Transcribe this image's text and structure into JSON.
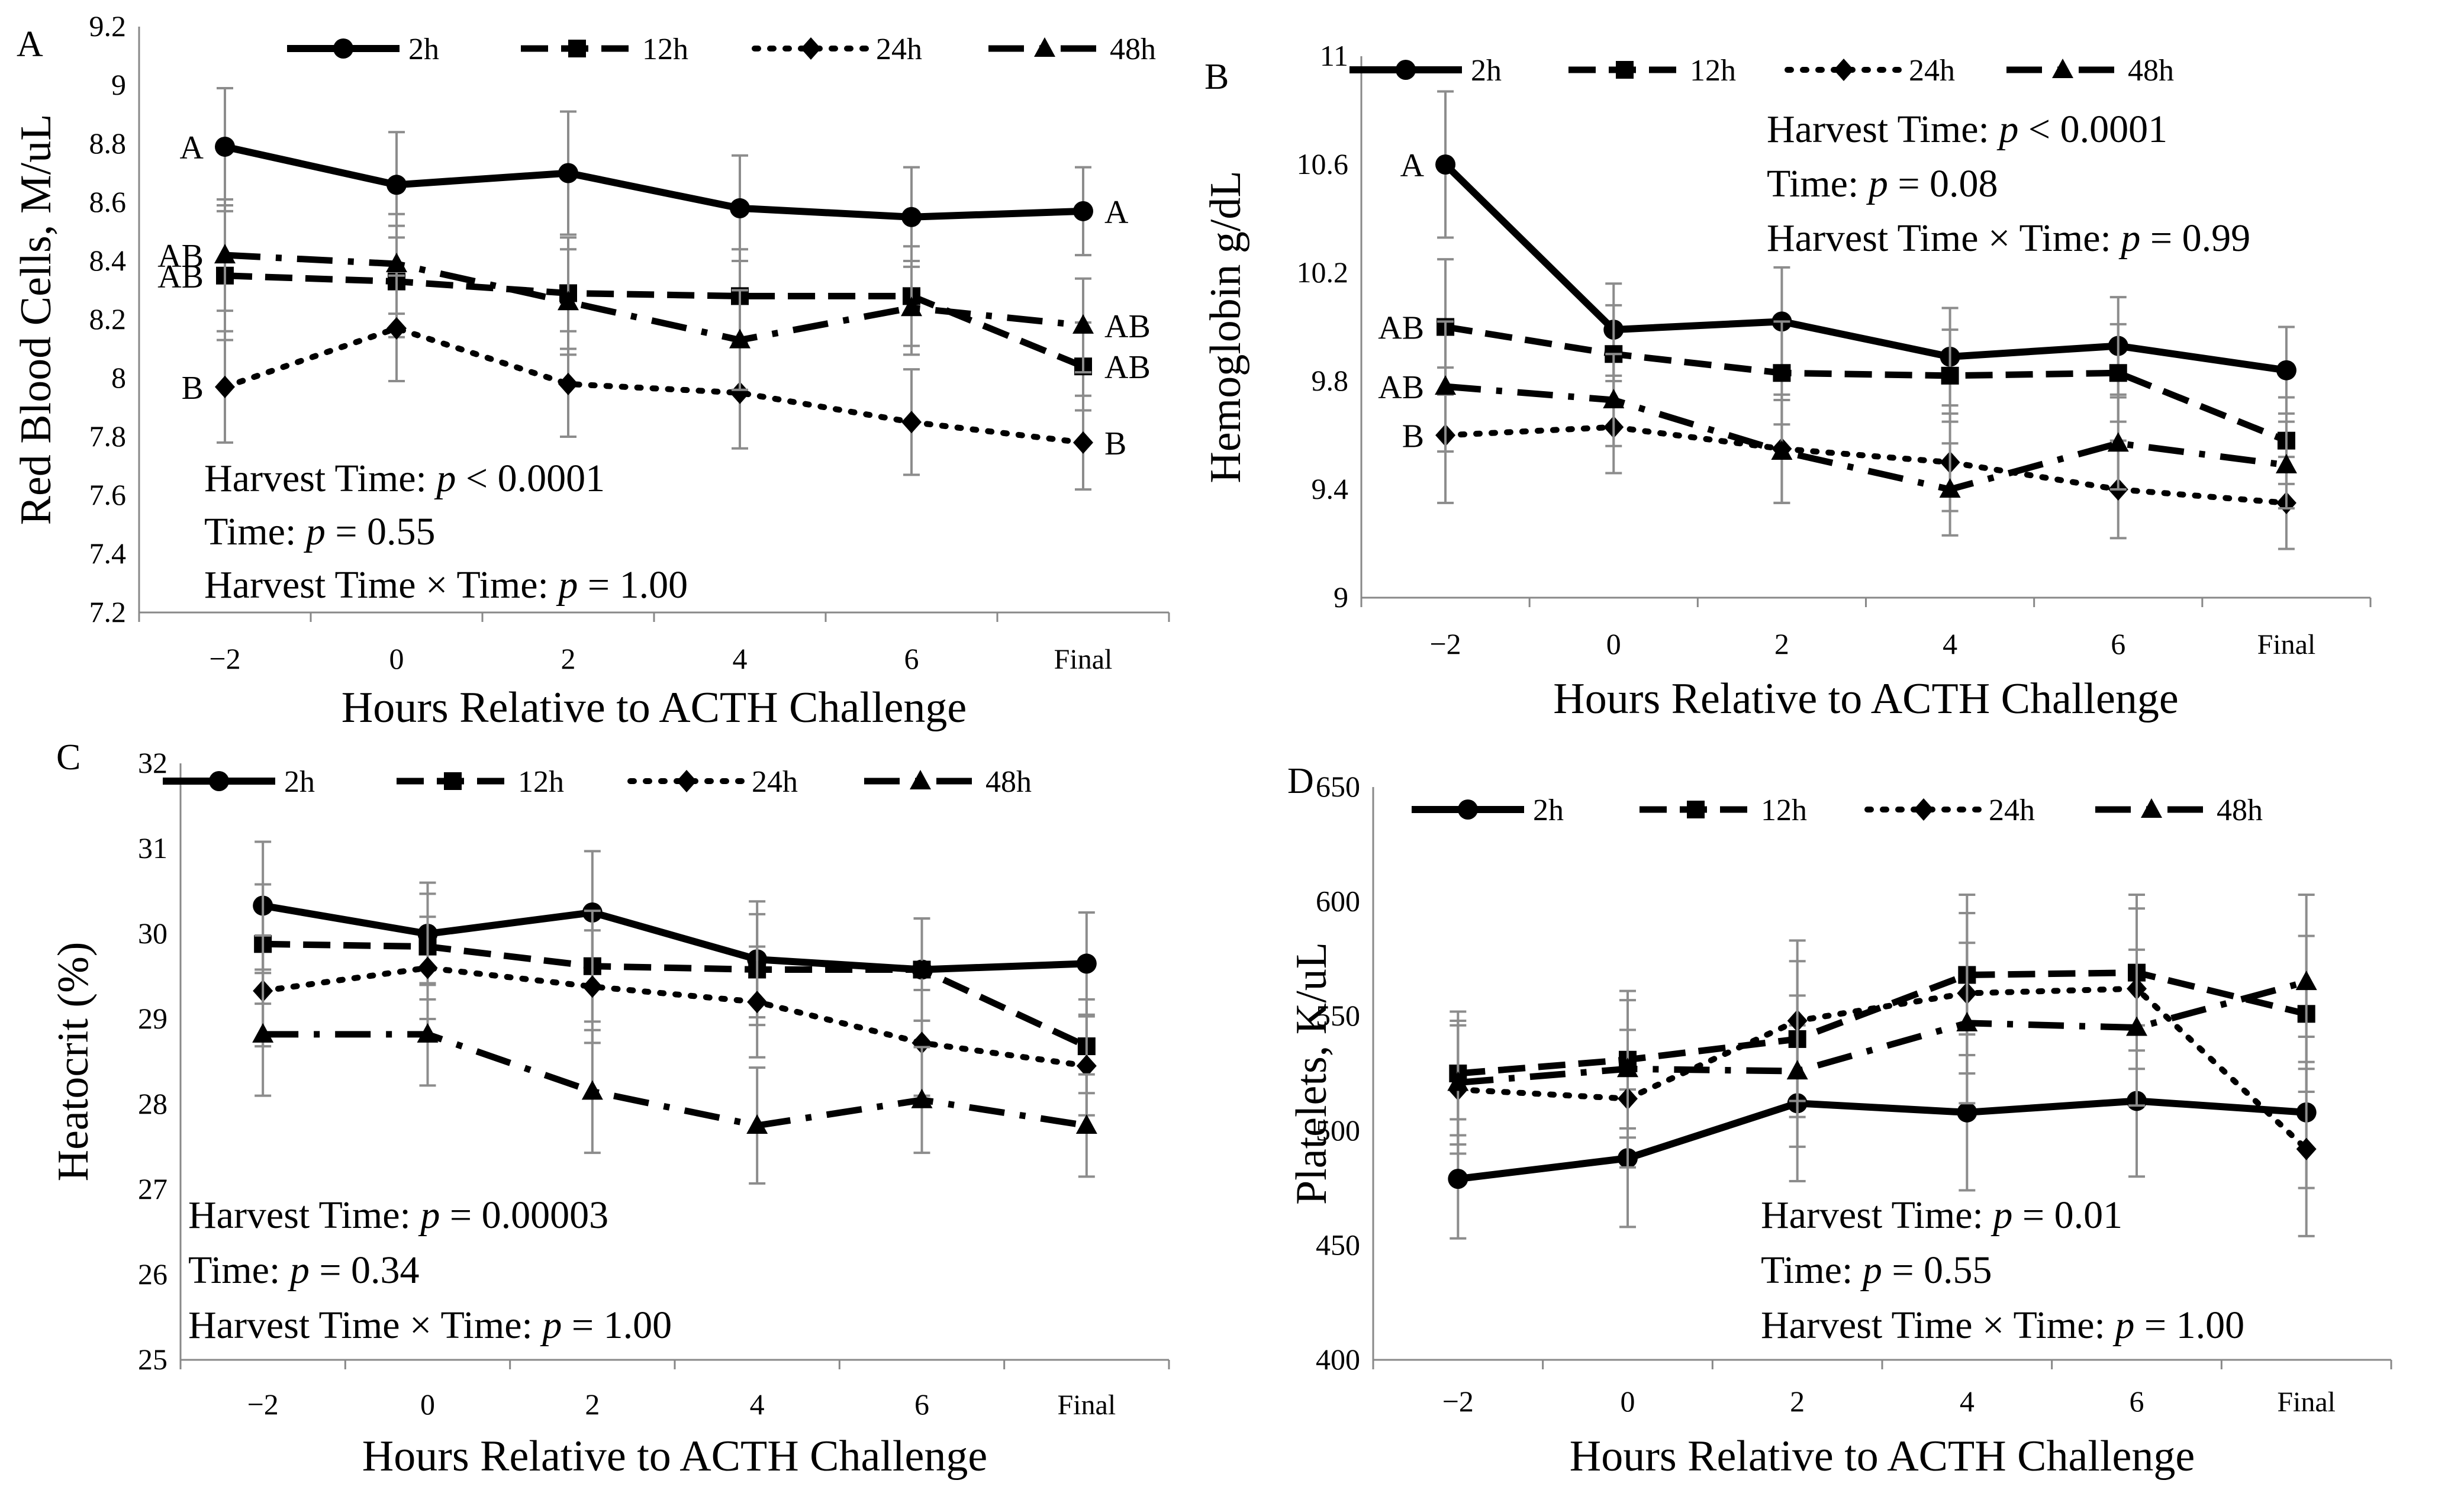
{
  "chart_data": [
    {
      "type": "line",
      "panel": "A",
      "xlabel": "Hours Relative to ACTH Challenge",
      "ylabel": "Red Blood Cells, M/uL",
      "categories": [
        "−2",
        "0",
        "2",
        "4",
        "6",
        "Final"
      ],
      "ylim": [
        7.2,
        9.2
      ],
      "yticks": [
        "7.2",
        "7.4",
        "7.6",
        "7.8",
        "8",
        "8.2",
        "8.4",
        "8.6",
        "8.8",
        "9",
        "9.2"
      ],
      "legend_position": "top",
      "series": [
        {
          "name": "2h",
          "values": [
            8.79,
            8.66,
            8.7,
            8.58,
            8.55,
            8.57
          ],
          "err": [
            0.2,
            0.18,
            0.21,
            0.18,
            0.17,
            0.15
          ]
        },
        {
          "name": "12h",
          "values": [
            8.35,
            8.33,
            8.29,
            8.28,
            8.28,
            8.04
          ],
          "err": [
            0.22,
            0.19,
            0.19,
            0.16,
            0.17,
            0.15
          ]
        },
        {
          "name": "24h",
          "values": [
            7.97,
            8.17,
            7.98,
            7.95,
            7.85,
            7.78
          ],
          "err": [
            0.19,
            0.18,
            0.18,
            0.19,
            0.18,
            0.16
          ]
        },
        {
          "name": "48h",
          "values": [
            8.42,
            8.39,
            8.26,
            8.13,
            8.24,
            8.18
          ],
          "err": [
            0.19,
            0.17,
            0.18,
            0.17,
            0.16,
            0.16
          ]
        }
      ],
      "annotations": [
        {
          "text": "A",
          "series": "2h",
          "index": 0,
          "side": "left"
        },
        {
          "text": "A",
          "series": "2h",
          "index": 5,
          "side": "right"
        },
        {
          "text": "AB",
          "series": "48h",
          "index": 0,
          "side": "left"
        },
        {
          "text": "AB",
          "series": "12h",
          "index": 0,
          "side": "left"
        },
        {
          "text": "B",
          "series": "24h",
          "index": 0,
          "side": "left"
        },
        {
          "text": "AB",
          "series": "48h",
          "index": 5,
          "side": "right"
        },
        {
          "text": "AB",
          "series": "12h",
          "index": 5,
          "side": "right"
        },
        {
          "text": "B",
          "series": "24h",
          "index": 5,
          "side": "right"
        }
      ],
      "stats": [
        "Harvest Time: |p| < 0.0001",
        "Time: |p| = 0.55",
        "Harvest Time × Time: |p| = 1.00"
      ]
    },
    {
      "type": "line",
      "panel": "B",
      "xlabel": "Hours Relative to ACTH Challenge",
      "ylabel": "Hemoglobin g/dL",
      "categories": [
        "−2",
        "0",
        "2",
        "4",
        "6",
        "Final"
      ],
      "ylim": [
        9,
        11
      ],
      "yticks": [
        "9",
        "9.4",
        "9.8",
        "10.2",
        "10.6",
        "11"
      ],
      "legend_position": "top",
      "series": [
        {
          "name": "2h",
          "values": [
            10.6,
            9.99,
            10.02,
            9.89,
            9.93,
            9.84
          ],
          "err": [
            0.27,
            0.17,
            0.2,
            0.18,
            0.18,
            0.16
          ]
        },
        {
          "name": "12h",
          "values": [
            10.0,
            9.9,
            9.83,
            9.82,
            9.83,
            9.58
          ],
          "err": [
            0.25,
            0.18,
            0.19,
            0.17,
            0.18,
            0.16
          ]
        },
        {
          "name": "24h",
          "values": [
            9.6,
            9.63,
            9.55,
            9.5,
            9.4,
            9.35
          ],
          "err": [
            0.25,
            0.17,
            0.2,
            0.18,
            0.18,
            0.17
          ]
        },
        {
          "name": "48h",
          "values": [
            9.78,
            9.73,
            9.54,
            9.4,
            9.57,
            9.49
          ],
          "err": [
            0.24,
            0.17,
            0.19,
            0.17,
            0.17,
            0.16
          ]
        }
      ],
      "annotations": [
        {
          "text": "A",
          "series": "2h",
          "index": 0,
          "side": "left"
        },
        {
          "text": "AB",
          "series": "12h",
          "index": 0,
          "side": "left"
        },
        {
          "text": "AB",
          "series": "48h",
          "index": 0,
          "side": "left"
        },
        {
          "text": "B",
          "series": "24h",
          "index": 0,
          "side": "left"
        }
      ],
      "stats": [
        "Harvest Time: |p| < 0.0001",
        "Time: |p| = 0.08",
        "Harvest Time × Time: |p| = 0.99"
      ]
    },
    {
      "type": "line",
      "panel": "C",
      "xlabel": "Hours Relative to ACTH Challenge",
      "ylabel": "Heatocrit (%)",
      "categories": [
        "−2",
        "0",
        "2",
        "4",
        "6",
        "Final"
      ],
      "ylim": [
        25,
        32
      ],
      "yticks": [
        "25",
        "26",
        "27",
        "28",
        "29",
        "30",
        "31",
        "32"
      ],
      "legend_position": "top",
      "series": [
        {
          "name": "2h",
          "values": [
            30.33,
            30.0,
            30.25,
            29.7,
            29.58,
            29.65
          ],
          "err": [
            0.75,
            0.6,
            0.72,
            0.68,
            0.6,
            0.6
          ]
        },
        {
          "name": "12h",
          "values": [
            29.88,
            29.85,
            29.62,
            29.58,
            29.58,
            28.68
          ],
          "err": [
            0.7,
            0.62,
            0.65,
            0.65,
            0.6,
            0.55
          ]
        },
        {
          "name": "24h",
          "values": [
            29.33,
            29.6,
            29.38,
            29.2,
            28.72,
            28.45
          ],
          "err": [
            0.65,
            0.6,
            0.66,
            0.65,
            0.62,
            0.58
          ]
        },
        {
          "name": "48h",
          "values": [
            28.82,
            28.82,
            28.15,
            27.75,
            28.05,
            27.75
          ],
          "err": [
            0.72,
            0.6,
            0.72,
            0.68,
            0.62,
            0.6
          ]
        }
      ],
      "annotations": [],
      "stats": [
        "Harvest Time: |p| = 0.00003",
        "Time: |p| = 0.34",
        "Harvest Time × Time: |p| = 1.00"
      ]
    },
    {
      "type": "line",
      "panel": "D",
      "xlabel": "Hours Relative to ACTH Challenge",
      "ylabel": "Platelets, K/uL",
      "categories": [
        "−2",
        "0",
        "2",
        "4",
        "6",
        "Final"
      ],
      "ylim": [
        400,
        650
      ],
      "yticks": [
        "400",
        "450",
        "500",
        "550",
        "600",
        "650"
      ],
      "legend_position": "top",
      "series": [
        {
          "name": "2h",
          "values": [
            479,
            488,
            512,
            508,
            513,
            508
          ],
          "err": [
            26,
            30,
            34,
            34,
            33,
            33
          ]
        },
        {
          "name": "12h",
          "values": [
            525,
            531,
            540,
            568,
            569,
            551
          ],
          "err": [
            27,
            30,
            34,
            35,
            34,
            34
          ]
        },
        {
          "name": "24h",
          "values": [
            518,
            514,
            548,
            560,
            562,
            492
          ],
          "err": [
            28,
            30,
            35,
            35,
            35,
            38
          ]
        },
        {
          "name": "48h",
          "values": [
            521,
            527,
            526,
            547,
            545,
            565
          ],
          "err": [
            27,
            30,
            33,
            35,
            34,
            38
          ]
        }
      ],
      "annotations": [],
      "stats": [
        "Harvest Time: |p| = 0.01",
        "Time: |p| = 0.55",
        "Harvest Time × Time: |p| = 1.00"
      ]
    }
  ]
}
